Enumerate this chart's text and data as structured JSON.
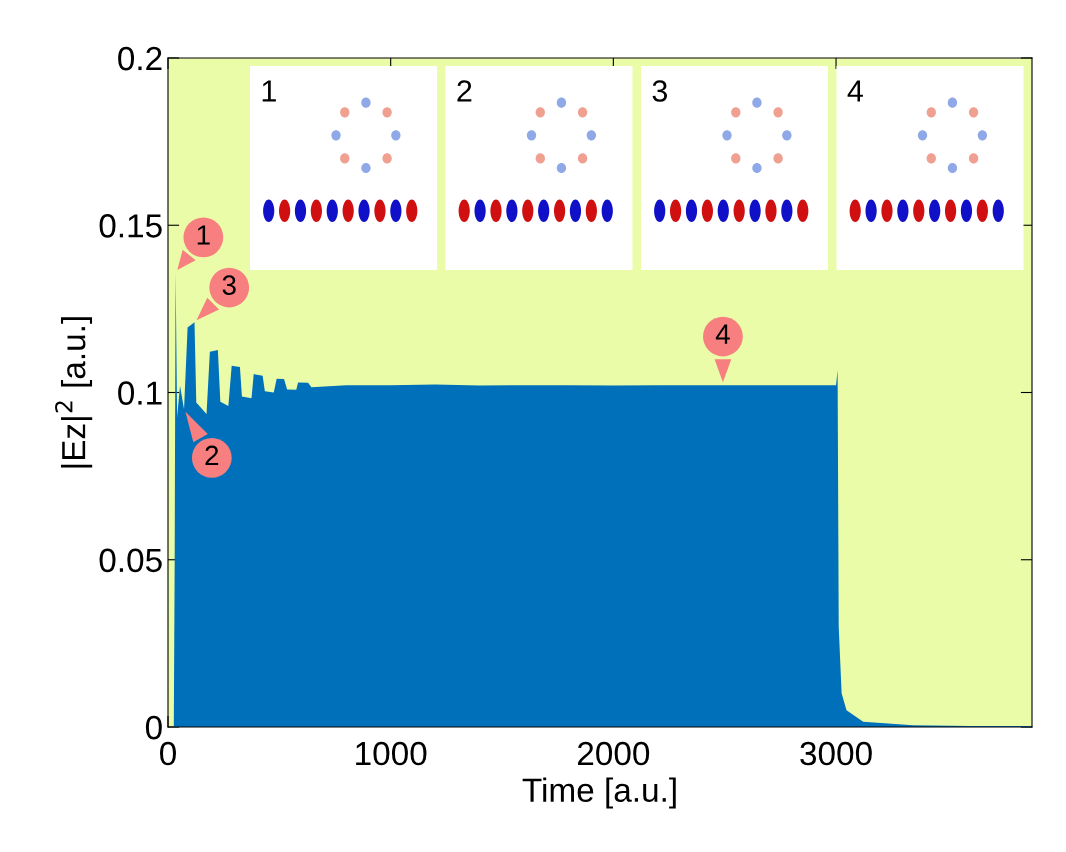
{
  "chart_data": {
    "type": "area",
    "xlabel": "Time [a.u.]",
    "ylabel": "|Ez|$^{2}$ [a.u.]",
    "xlim": [
      0,
      3880
    ],
    "ylim": [
      0,
      0.2
    ],
    "xticks": [
      0,
      1000,
      2000,
      3000
    ],
    "yticks": [
      0,
      0.05,
      0.1,
      0.15,
      0.2
    ],
    "grid": false,
    "legend": false,
    "bands": [
      {
        "axis": "y",
        "from": 0,
        "to": 0.2,
        "color": "#ebfca8"
      }
    ],
    "series": [
      {
        "color": "#0070bb",
        "x": [
          26,
          30,
          34,
          41,
          54,
          72,
          88,
          119,
          127,
          173,
          188,
          224,
          235,
          271,
          286,
          323,
          332,
          375,
          385,
          425,
          435,
          475,
          488,
          521,
          535,
          576,
          584,
          629,
          644,
          800,
          1000,
          1200,
          1400,
          1600,
          1800,
          2000,
          2200,
          2400,
          2600,
          2800,
          3000,
          3007,
          3012,
          3025,
          3047,
          3122,
          3346,
          3600,
          3880
        ],
        "values": [
          0,
          0.05,
          0.136,
          0.0927,
          0.102,
          0.095,
          0.1194,
          0.121,
          0.097,
          0.0936,
          0.1122,
          0.1127,
          0.0972,
          0.096,
          0.108,
          0.1076,
          0.0988,
          0.0983,
          0.1055,
          0.105,
          0.1004,
          0.1,
          0.1041,
          0.104,
          0.1009,
          0.1008,
          0.103,
          0.1029,
          0.1016,
          0.1022,
          0.1022,
          0.1024,
          0.1021,
          0.1022,
          0.1022,
          0.1021,
          0.1022,
          0.1022,
          0.1022,
          0.1022,
          0.1022,
          0.1067,
          0.03,
          0.0101,
          0.005,
          0.0016,
          0.0005,
          0.0003,
          0.0003
        ]
      }
    ],
    "annotations": [
      {
        "text": "1",
        "x": 34,
        "y": 0.136
      },
      {
        "text": "2",
        "x": 72,
        "y": 0.095
      },
      {
        "text": "3",
        "x": 119,
        "y": 0.121
      },
      {
        "text": "4",
        "x": 2492,
        "y": 0.1022
      },
      "1",
      "2",
      "3",
      "4"
    ]
  }
}
